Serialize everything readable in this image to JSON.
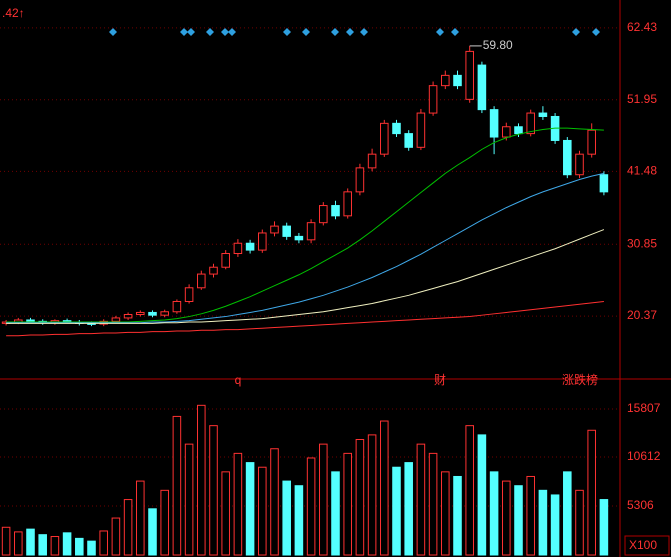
{
  "chart_data": {
    "type": "candlestick",
    "corner_label": ".42↑",
    "peak_label": "59.80",
    "annotations": [
      "q",
      "财",
      "涨跌榜"
    ],
    "volume_unit": "X100",
    "open": [
      19.3,
      19.5,
      19.8,
      19.6,
      19.4,
      19.7,
      19.5,
      19.3,
      19.2,
      19.6,
      20.1,
      20.6,
      20.9,
      20.5,
      21.0,
      22.5,
      24.5,
      26.5,
      27.5,
      29.5,
      31.0,
      30.0,
      32.5,
      33.5,
      32.0,
      31.5,
      34.0,
      36.5,
      35.0,
      38.5,
      42.0,
      44.0,
      48.5,
      47.0,
      45.0,
      50.0,
      54.0,
      55.5,
      52.0,
      57.0,
      50.5,
      46.5,
      48.0,
      47.0,
      50.0,
      49.5,
      46.0,
      41.0,
      44.0,
      41.0
    ],
    "high": [
      19.8,
      20.1,
      20.1,
      19.9,
      19.9,
      20.0,
      19.8,
      19.6,
      19.9,
      20.4,
      20.9,
      21.2,
      21.2,
      21.3,
      22.8,
      25.0,
      27.0,
      28.0,
      30.0,
      31.6,
      31.5,
      33.0,
      34.2,
      34.0,
      32.5,
      34.5,
      37.0,
      37.2,
      39.0,
      42.6,
      44.8,
      49.0,
      49.0,
      47.5,
      50.6,
      54.6,
      56.2,
      56.2,
      59.8,
      57.5,
      51.0,
      48.6,
      48.5,
      50.5,
      51.0,
      50.0,
      46.5,
      44.5,
      48.5,
      41.5
    ],
    "low": [
      19.0,
      19.2,
      19.3,
      19.1,
      19.1,
      19.3,
      19.0,
      18.9,
      18.9,
      19.3,
      19.8,
      20.3,
      20.2,
      20.2,
      20.7,
      22.2,
      24.2,
      26.0,
      27.2,
      29.0,
      29.5,
      29.6,
      32.0,
      31.5,
      31.0,
      31.0,
      33.6,
      34.5,
      34.6,
      38.0,
      41.5,
      43.6,
      46.5,
      44.5,
      44.6,
      49.6,
      53.5,
      53.5,
      51.5,
      50.0,
      44.0,
      46.0,
      46.5,
      46.6,
      49.0,
      45.5,
      40.5,
      40.5,
      43.5,
      38.0
    ],
    "close": [
      19.5,
      19.8,
      19.6,
      19.4,
      19.7,
      19.5,
      19.3,
      19.2,
      19.6,
      20.1,
      20.6,
      20.9,
      20.5,
      21.0,
      22.5,
      24.5,
      26.5,
      27.5,
      29.5,
      31.0,
      30.0,
      32.5,
      33.5,
      32.0,
      31.5,
      34.0,
      36.5,
      35.0,
      38.5,
      42.0,
      44.0,
      48.5,
      47.0,
      45.0,
      50.0,
      54.0,
      55.5,
      54.0,
      59.0,
      50.5,
      46.5,
      48.0,
      47.0,
      50.0,
      49.5,
      46.0,
      41.0,
      44.0,
      47.5,
      38.5
    ],
    "up_color": "#ff3232",
    "down_color": "#54ffff",
    "lines": [
      {
        "color": "#00c000",
        "values": [
          19.5,
          19.5,
          19.5,
          19.5,
          19.5,
          19.5,
          19.5,
          19.5,
          19.5,
          19.5,
          19.5,
          19.6,
          19.7,
          19.8,
          20.0,
          20.3,
          20.7,
          21.2,
          21.8,
          22.5,
          23.2,
          24.0,
          24.8,
          25.6,
          26.4,
          27.3,
          28.3,
          29.3,
          30.3,
          31.5,
          32.8,
          34.2,
          35.6,
          37.0,
          38.4,
          39.8,
          41.2,
          42.4,
          43.5,
          44.7,
          45.7,
          46.4,
          46.9,
          47.3,
          47.6,
          47.8,
          47.8,
          47.7,
          47.6,
          47.5
        ]
      },
      {
        "color": "#3fa8e8",
        "values": [
          19.4,
          19.4,
          19.4,
          19.4,
          19.4,
          19.4,
          19.4,
          19.4,
          19.4,
          19.4,
          19.4,
          19.4,
          19.5,
          19.5,
          19.6,
          19.7,
          19.9,
          20.1,
          20.3,
          20.6,
          20.9,
          21.2,
          21.6,
          22.0,
          22.4,
          22.9,
          23.4,
          24.0,
          24.6,
          25.3,
          26.0,
          26.8,
          27.6,
          28.5,
          29.4,
          30.4,
          31.4,
          32.4,
          33.4,
          34.4,
          35.3,
          36.2,
          37.0,
          37.8,
          38.5,
          39.1,
          39.7,
          40.3,
          40.8,
          41.2
        ]
      },
      {
        "color": "#f0f0c0",
        "values": [
          19.3,
          19.3,
          19.3,
          19.3,
          19.3,
          19.3,
          19.3,
          19.3,
          19.3,
          19.3,
          19.3,
          19.3,
          19.3,
          19.4,
          19.4,
          19.5,
          19.5,
          19.6,
          19.7,
          19.8,
          19.9,
          20.0,
          20.2,
          20.4,
          20.6,
          20.8,
          21.0,
          21.3,
          21.6,
          21.9,
          22.2,
          22.6,
          23.0,
          23.4,
          23.9,
          24.4,
          24.9,
          25.4,
          26.0,
          26.6,
          27.2,
          27.8,
          28.4,
          29.0,
          29.6,
          30.2,
          30.9,
          31.6,
          32.3,
          33.0
        ]
      },
      {
        "color": "#ff3030",
        "values": [
          17.5,
          17.5,
          17.6,
          17.6,
          17.7,
          17.7,
          17.8,
          17.8,
          17.9,
          17.9,
          18.0,
          18.0,
          18.1,
          18.1,
          18.2,
          18.2,
          18.3,
          18.3,
          18.4,
          18.4,
          18.5,
          18.6,
          18.7,
          18.8,
          18.9,
          19.0,
          19.1,
          19.2,
          19.3,
          19.4,
          19.5,
          19.6,
          19.7,
          19.8,
          19.9,
          20.0,
          20.1,
          20.2,
          20.3,
          20.5,
          20.7,
          20.9,
          21.1,
          21.3,
          21.5,
          21.7,
          21.9,
          22.1,
          22.3,
          22.5
        ]
      }
    ],
    "ylim": [
      12.5,
      66.5
    ],
    "yticks": [
      62.43,
      51.95,
      41.48,
      30.85,
      20.37
    ],
    "volume": [
      3000,
      2500,
      2800,
      2200,
      2000,
      2400,
      1800,
      1500,
      2600,
      4000,
      6000,
      8000,
      5000,
      7000,
      15000,
      12000,
      16200,
      14000,
      9000,
      11000,
      10000,
      9500,
      11500,
      8000,
      7500,
      10500,
      12000,
      9000,
      11000,
      12500,
      13000,
      14500,
      9500,
      10000,
      12000,
      11000,
      9000,
      8500,
      14000,
      13000,
      9000,
      8000,
      7500,
      8500,
      7000,
      6500,
      9000,
      7000,
      13500,
      6000
    ],
    "vlim": [
      0,
      18400
    ],
    "vticks": [
      15807,
      10612,
      5306
    ]
  }
}
